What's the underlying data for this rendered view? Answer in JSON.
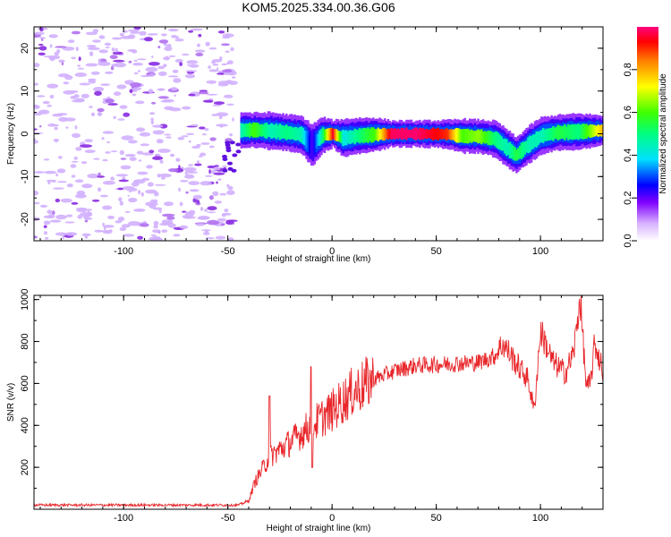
{
  "title": "KOM5.2025.334.00.36.G06",
  "chart_data": [
    {
      "type": "heatmap",
      "xlabel": "Height of straight line (km)",
      "ylabel": "Frequency (Hz)",
      "xlim": [
        -143,
        130
      ],
      "ylim": [
        -25,
        25
      ],
      "xticks": [
        -100,
        -50,
        0,
        50,
        100
      ],
      "xtick_labels": [
        "-100",
        "-50",
        "0",
        "50",
        "100"
      ],
      "yticks": [
        -20,
        -10,
        0,
        10,
        20
      ],
      "ytick_labels": [
        "-20",
        "-10",
        "0",
        "10",
        "20"
      ],
      "noise_region_x": [
        -143,
        -47
      ],
      "ridge": [
        {
          "x": -44,
          "f": 0.8,
          "a": 0.45
        },
        {
          "x": -38,
          "f": 0.9,
          "a": 0.6
        },
        {
          "x": -30,
          "f": 0.7,
          "a": 0.45
        },
        {
          "x": -22,
          "f": 0.3,
          "a": 0.5
        },
        {
          "x": -15,
          "f": -0.2,
          "a": 0.45
        },
        {
          "x": -10,
          "f": -2.8,
          "a": 0.2
        },
        {
          "x": -5,
          "f": -0.3,
          "a": 0.5
        },
        {
          "x": 0,
          "f": 0.0,
          "a": 0.95
        },
        {
          "x": 5,
          "f": -1.0,
          "a": 0.4
        },
        {
          "x": 12,
          "f": -0.5,
          "a": 0.5
        },
        {
          "x": 20,
          "f": -0.2,
          "a": 0.6
        },
        {
          "x": 28,
          "f": 0.0,
          "a": 0.98
        },
        {
          "x": 40,
          "f": 0.0,
          "a": 0.99
        },
        {
          "x": 55,
          "f": -0.1,
          "a": 0.9
        },
        {
          "x": 62,
          "f": -0.5,
          "a": 0.6
        },
        {
          "x": 70,
          "f": -0.6,
          "a": 0.65
        },
        {
          "x": 78,
          "f": -1.2,
          "a": 0.5
        },
        {
          "x": 84,
          "f": -3.5,
          "a": 0.45
        },
        {
          "x": 88,
          "f": -5.0,
          "a": 0.55
        },
        {
          "x": 94,
          "f": -2.5,
          "a": 0.45
        },
        {
          "x": 100,
          "f": -0.5,
          "a": 0.45
        },
        {
          "x": 108,
          "f": 0.3,
          "a": 0.55
        },
        {
          "x": 118,
          "f": 0.5,
          "a": 0.5
        },
        {
          "x": 130,
          "f": 0.8,
          "a": 0.8
        }
      ],
      "colorbar": {
        "label": "Normalized spectral amplitude",
        "range": [
          0,
          1
        ],
        "ticks": [
          0.0,
          0.2,
          0.4,
          0.6,
          0.8
        ],
        "tick_labels": [
          "0.0",
          "0.2",
          "0.4",
          "0.6",
          "0.8"
        ]
      }
    },
    {
      "type": "line",
      "xlabel": "Height of straight line (km)",
      "ylabel": "SNR (v/v)",
      "xlim": [
        -143,
        130
      ],
      "ylim": [
        0,
        1020
      ],
      "xticks": [
        -100,
        -50,
        0,
        50,
        100
      ],
      "xtick_labels": [
        "-100",
        "-50",
        "0",
        "50",
        "100"
      ],
      "yticks": [
        200,
        400,
        600,
        800,
        1000
      ],
      "ytick_labels": [
        "200",
        "400",
        "600",
        "800",
        "1000"
      ],
      "series": [
        {
          "name": "SNR",
          "color": "#e8262a",
          "trend": [
            {
              "x": -143,
              "y": 20
            },
            {
              "x": -45,
              "y": 20
            },
            {
              "x": -40,
              "y": 40
            },
            {
              "x": -37,
              "y": 130
            },
            {
              "x": -30,
              "y": 250
            },
            {
              "x": -20,
              "y": 320
            },
            {
              "x": -10,
              "y": 400
            },
            {
              "x": 0,
              "y": 470
            },
            {
              "x": 10,
              "y": 560
            },
            {
              "x": 20,
              "y": 620
            },
            {
              "x": 30,
              "y": 660
            },
            {
              "x": 40,
              "y": 685
            },
            {
              "x": 50,
              "y": 690
            },
            {
              "x": 60,
              "y": 695
            },
            {
              "x": 70,
              "y": 700
            },
            {
              "x": 78,
              "y": 730
            },
            {
              "x": 82,
              "y": 790
            },
            {
              "x": 88,
              "y": 700
            },
            {
              "x": 94,
              "y": 620
            },
            {
              "x": 97,
              "y": 470
            },
            {
              "x": 100,
              "y": 850
            },
            {
              "x": 106,
              "y": 700
            },
            {
              "x": 112,
              "y": 650
            },
            {
              "x": 116,
              "y": 750
            },
            {
              "x": 119,
              "y": 1010
            },
            {
              "x": 122,
              "y": 580
            },
            {
              "x": 124,
              "y": 600
            },
            {
              "x": 126,
              "y": 790
            },
            {
              "x": 130,
              "y": 660
            }
          ],
          "spikes": [
            {
              "x": -30,
              "y": 540
            },
            {
              "x": -10,
              "y": 680
            },
            {
              "x": -9.5,
              "y": 200
            }
          ]
        }
      ]
    }
  ]
}
